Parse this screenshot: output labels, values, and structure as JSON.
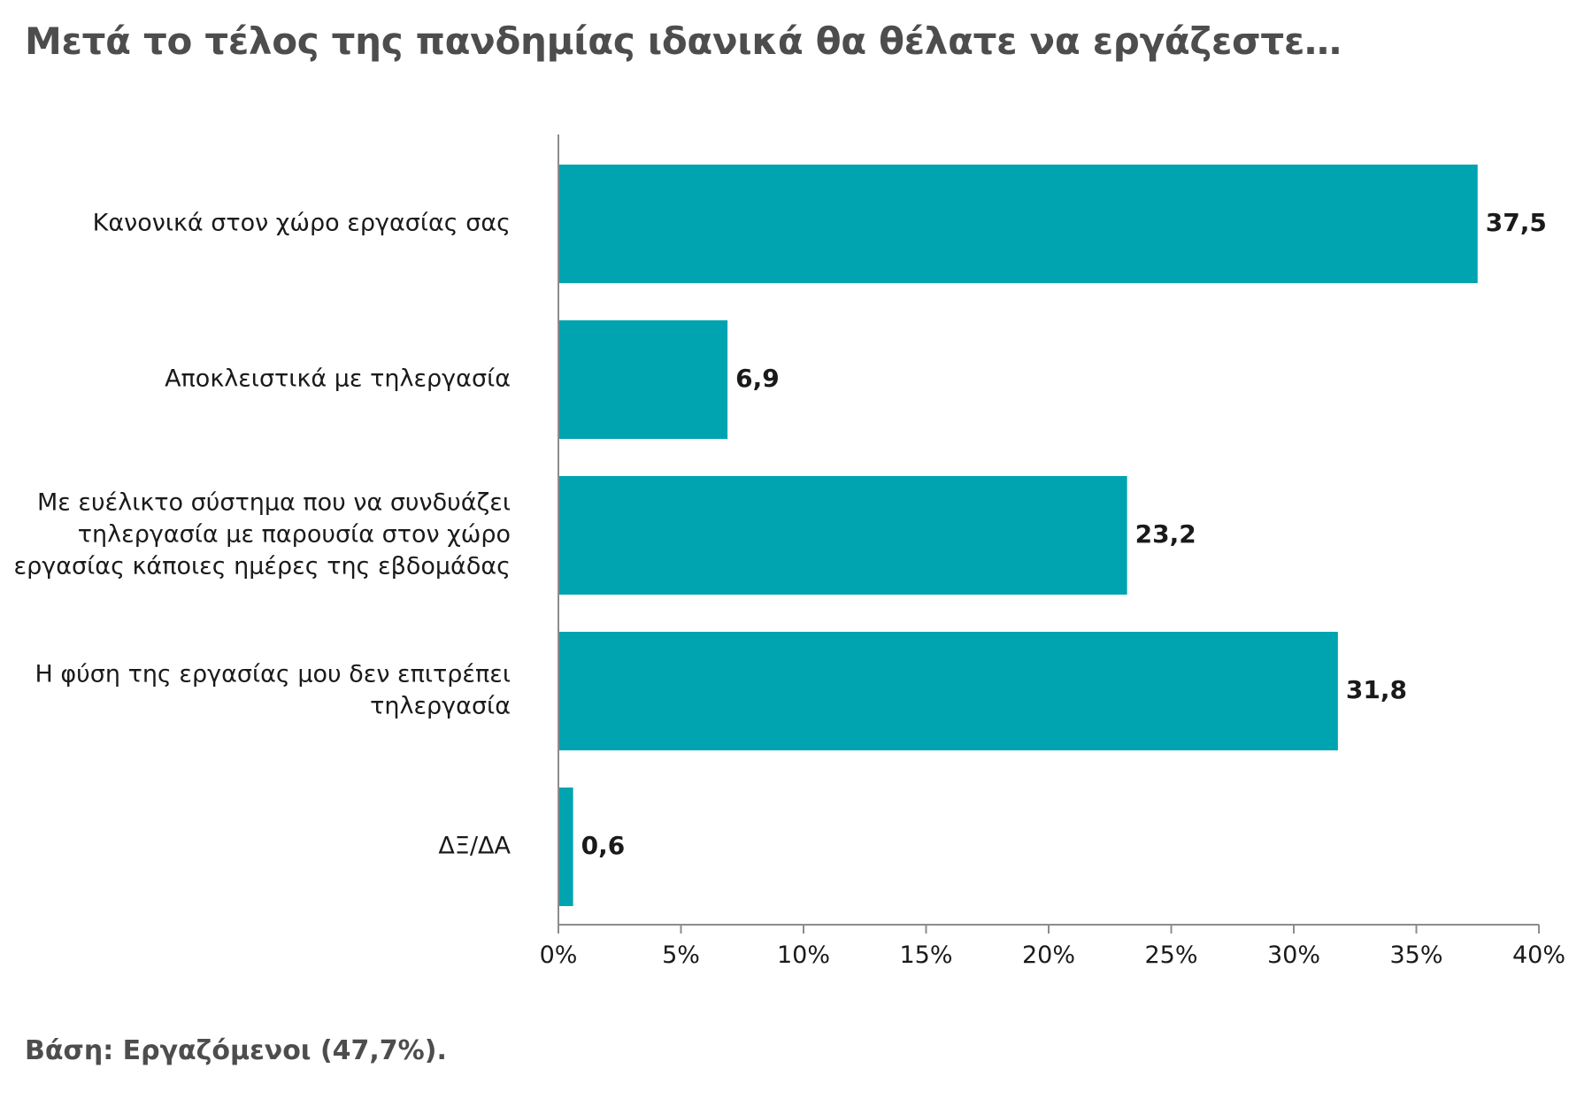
{
  "title": "Μετά το τέλος της πανδημίας ιδανικά θα θέλατε να εργάζεστε…",
  "footnote": "Βάση: Εργαζόμενοι (47,7%).",
  "chart_data": {
    "type": "bar",
    "orientation": "horizontal",
    "title": "Μετά το τέλος της πανδημίας ιδανικά θα θέλατε να εργάζεστε…",
    "categories": [
      [
        "Κανονικά στον χώρο εργασίας σας"
      ],
      [
        "Αποκλειστικά με τηλεργασία"
      ],
      [
        "Με ευέλικτο σύστημα που να συνδυάζει",
        "τηλεργασία με παρουσία στον χώρο",
        "εργασίας κάποιες ημέρες της εβδομάδας"
      ],
      [
        "Η φύση της εργασίας μου δεν επιτρέπει",
        "τηλεργασία"
      ],
      [
        "ΔΞ/ΔΑ"
      ]
    ],
    "values": [
      37.5,
      6.9,
      23.2,
      31.8,
      0.6
    ],
    "value_labels": [
      "37,5",
      "6,9",
      "23,2",
      "31,8",
      "0,6"
    ],
    "xlim": [
      0,
      40
    ],
    "xticks": [
      0,
      5,
      10,
      15,
      20,
      25,
      30,
      35,
      40
    ],
    "xtick_labels": [
      "0%",
      "5%",
      "10%",
      "15%",
      "20%",
      "25%",
      "30%",
      "35%",
      "40%"
    ],
    "xlabel": "",
    "ylabel": "",
    "grid": false,
    "legend": "none",
    "bar_color": "#00a3b0",
    "axis_color": "#8c8c8c"
  }
}
